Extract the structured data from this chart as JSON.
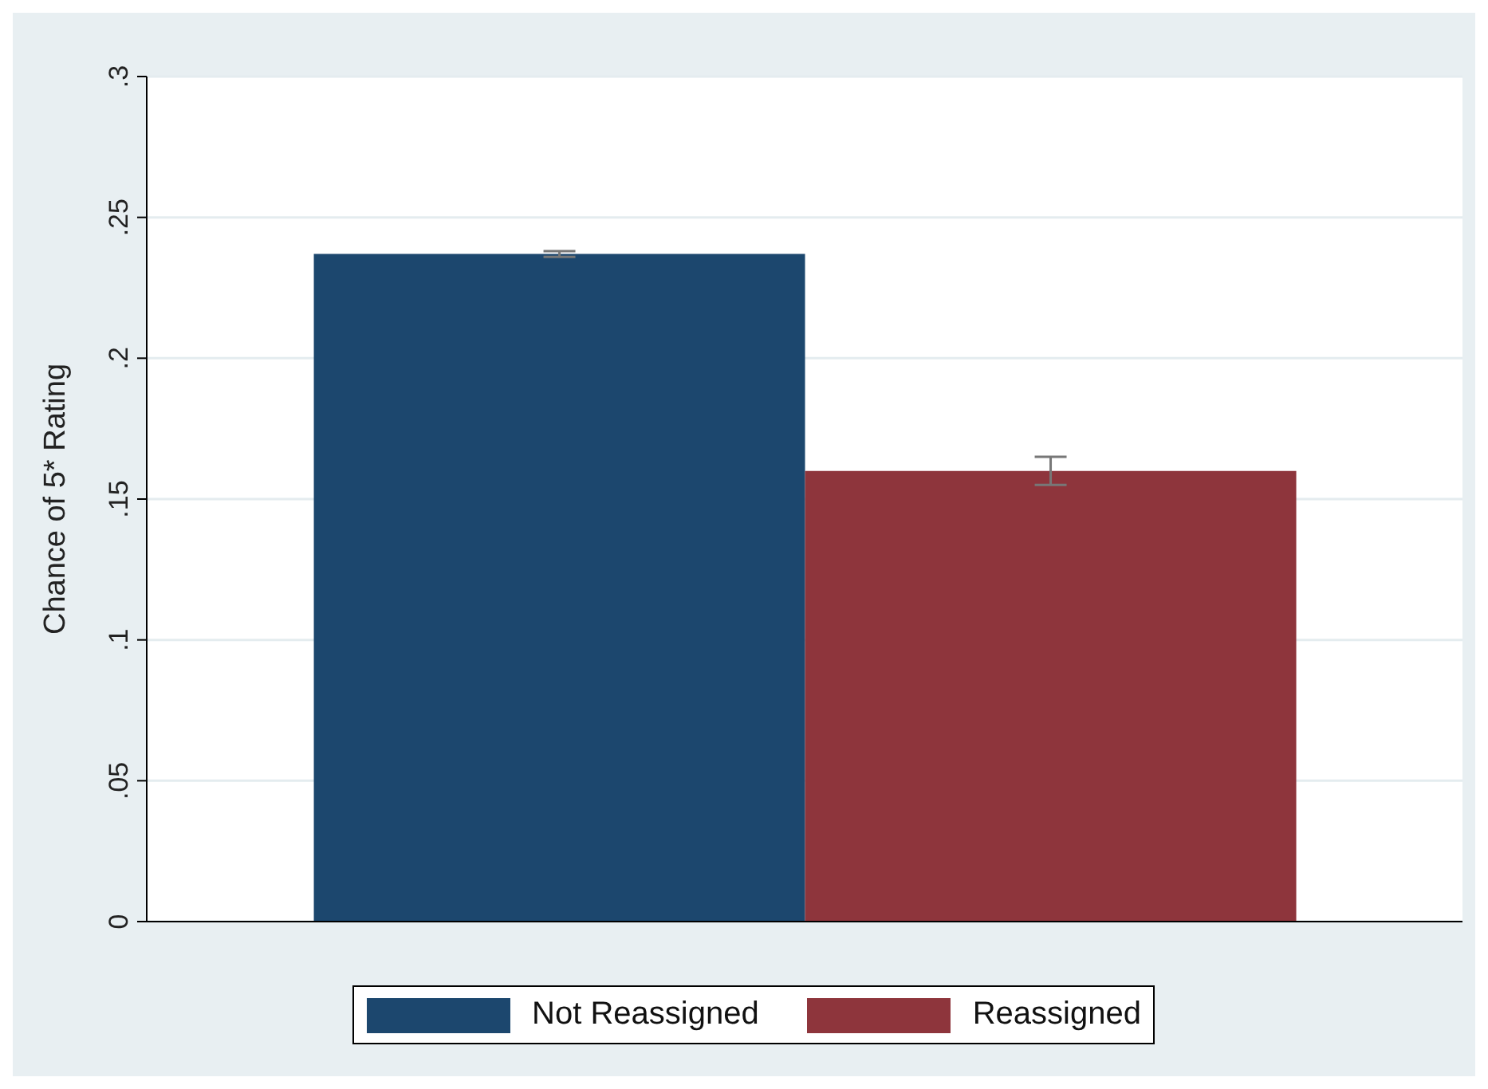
{
  "chart_data": {
    "type": "bar",
    "categories": [
      null
    ],
    "ylabel": "Chance of 5* Rating",
    "series": [
      {
        "name": "Not Reassigned",
        "color": "#1c476e",
        "values": [
          0.237
        ],
        "errors": [
          0.001
        ]
      },
      {
        "name": "Reassigned",
        "color": "#8e353c",
        "values": [
          0.16
        ],
        "errors": [
          [
            0.155,
            0.165
          ]
        ]
      }
    ],
    "ylim": [
      0,
      0.3
    ],
    "yticks": [
      {
        "value": 0,
        "label": "0"
      },
      {
        "value": 0.05,
        "label": ".05"
      },
      {
        "value": 0.1,
        "label": ".1"
      },
      {
        "value": 0.15,
        "label": ".15"
      },
      {
        "value": 0.2,
        "label": ".2"
      },
      {
        "value": 0.25,
        "label": ".25"
      },
      {
        "value": 0.3,
        "label": ".3"
      }
    ],
    "grid": "y",
    "legend": "bottom"
  }
}
